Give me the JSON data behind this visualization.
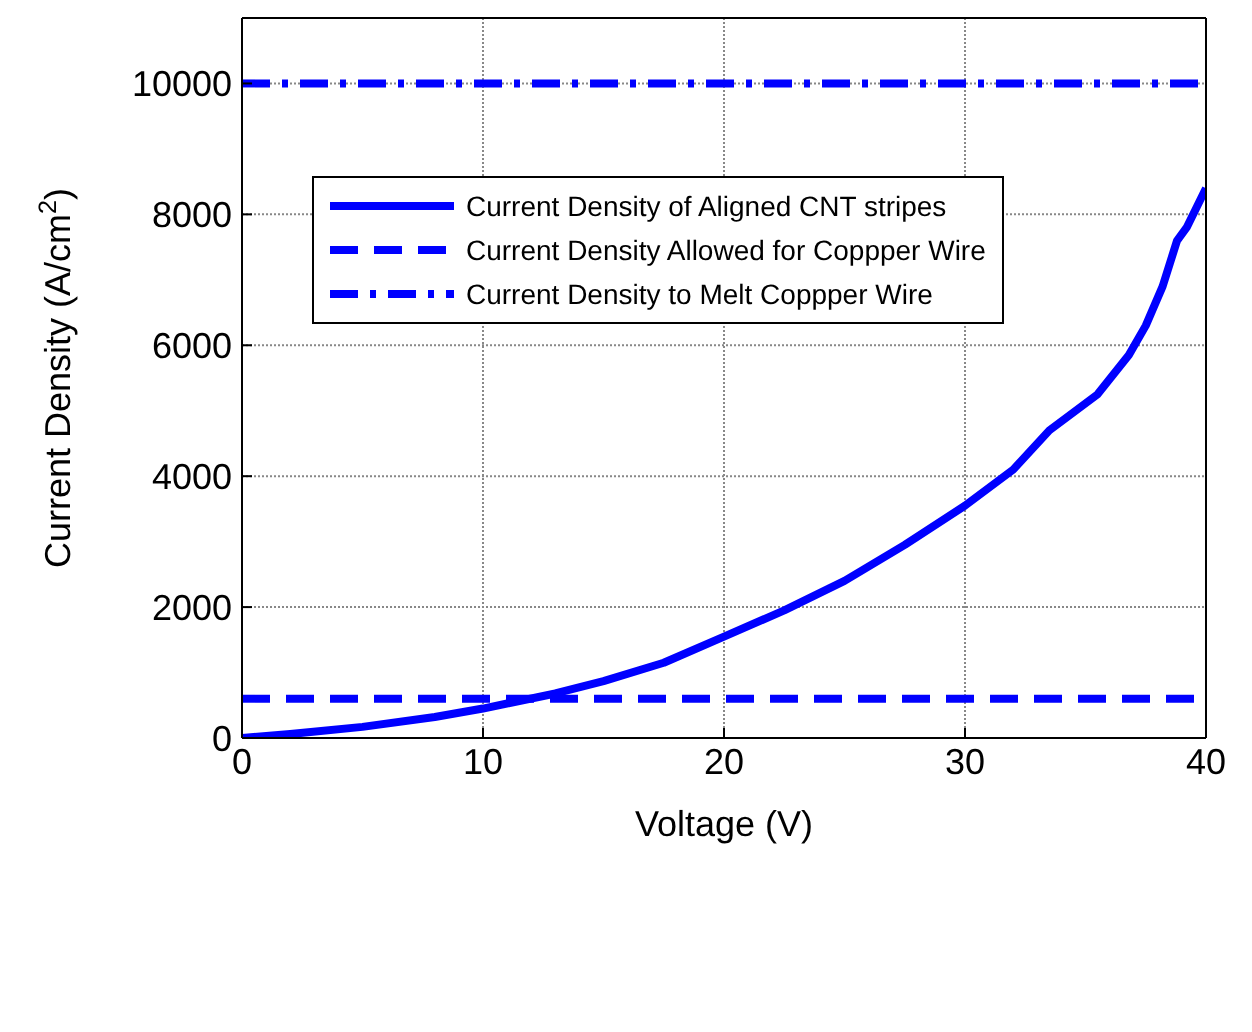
{
  "chart_data": {
    "type": "line",
    "xlabel": "Voltage (V)",
    "ylabel": "Current Density (A/cm$^{2}$)",
    "xlim": [
      0,
      40
    ],
    "xticks": [
      0,
      10,
      20,
      30,
      40
    ],
    "ylim": [
      0,
      11000
    ],
    "yticks": [
      0,
      2000,
      4000,
      6000,
      8000,
      10000
    ],
    "grid": true,
    "legend": "top left",
    "marker": "none",
    "series": [
      {
        "name": "Current Density of Aligned CNT stripes",
        "color": "#0000ff",
        "line_style": "solid",
        "x": [
          0,
          2,
          5,
          8,
          10,
          13,
          15,
          17.5,
          20,
          22.5,
          25,
          27.5,
          30,
          32,
          33.5,
          35.5,
          36.8,
          37.5,
          38.2,
          38.8,
          39.2,
          40
        ],
        "values": [
          0,
          60,
          170,
          320,
          450,
          680,
          870,
          1150,
          1550,
          1950,
          2400,
          2950,
          3550,
          4100,
          4700,
          5250,
          5850,
          6300,
          6900,
          7600,
          7800,
          8400
        ]
      },
      {
        "name": "Current Density Allowed for Coppper Wire",
        "color": "#0000ff",
        "line_style": "dashed",
        "x": [
          0,
          40
        ],
        "values": [
          600,
          600
        ]
      },
      {
        "name": "Current Density to Melt Coppper Wire",
        "color": "#0000ff",
        "line_style": "dashdot",
        "x": [
          0,
          40
        ],
        "values": [
          10000,
          10000
        ]
      }
    ]
  }
}
